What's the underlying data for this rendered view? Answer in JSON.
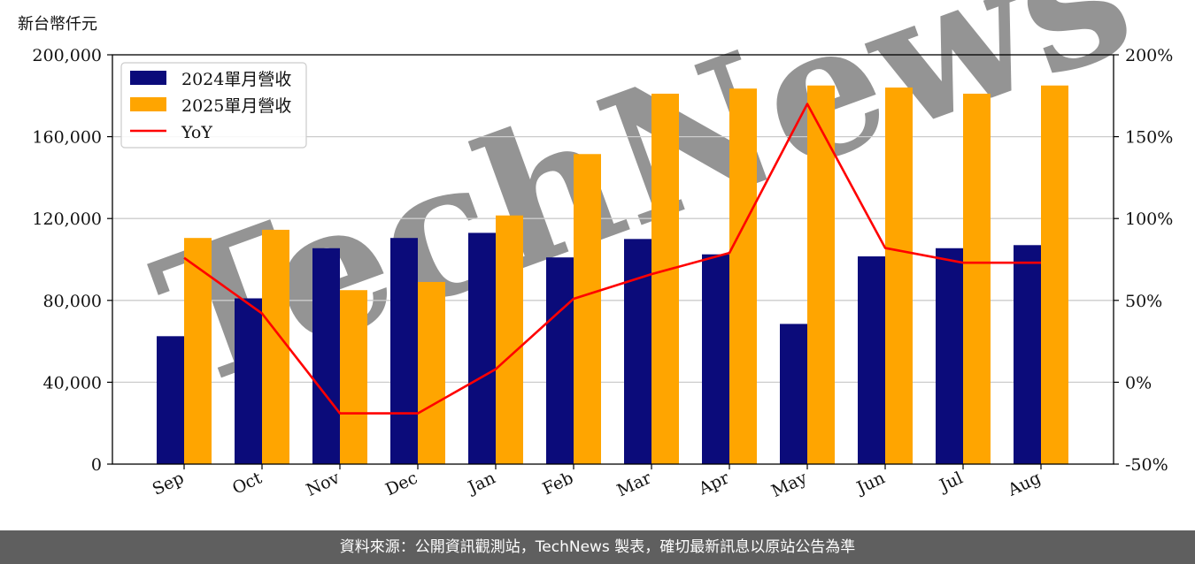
{
  "unit_label": "新台幣仟元",
  "watermark": "TechNews",
  "footer": "資料來源：公開資訊觀測站，TechNews 製表，確切最新訊息以原站公告為準",
  "colors": {
    "series_2024": "#0b0b7a",
    "series_2025": "#ffa500",
    "yoy": "#ff0000",
    "grid": "#cccccc",
    "footer_bg": "#5f5f5f"
  },
  "chart_data": {
    "type": "bar",
    "categories": [
      "Sep",
      "Oct",
      "Nov",
      "Dec",
      "Jan",
      "Feb",
      "Mar",
      "Apr",
      "May",
      "Jun",
      "Jul",
      "Aug"
    ],
    "series": [
      {
        "name": "2024單月營收",
        "type": "bar",
        "axis": "left",
        "values": [
          62500,
          81000,
          105500,
          110500,
          113000,
          101000,
          110000,
          102500,
          68500,
          101500,
          105500,
          107000
        ]
      },
      {
        "name": "2025單月營收",
        "type": "bar",
        "axis": "left",
        "values": [
          110500,
          114500,
          85000,
          89000,
          121500,
          151500,
          181000,
          183500,
          185000,
          184000,
          181000,
          185000
        ]
      }
    ],
    "line_series": {
      "name": "YoY",
      "type": "line",
      "axis": "right",
      "values": [
        76,
        42,
        -19,
        -19,
        8,
        51,
        66,
        79,
        170,
        82,
        73,
        73
      ]
    },
    "left_axis": {
      "ylim": [
        0,
        200000
      ],
      "ticks": [
        0,
        40000,
        80000,
        120000,
        160000,
        200000
      ],
      "tick_labels": [
        "0",
        "40,000",
        "80,000",
        "120,000",
        "160,000",
        "200,000"
      ]
    },
    "right_axis": {
      "ylim": [
        -50,
        200
      ],
      "ticks": [
        -50,
        0,
        50,
        100,
        150,
        200
      ],
      "tick_labels": [
        "-50%",
        "0%",
        "50%",
        "100%",
        "150%",
        "200%"
      ]
    },
    "grid": true,
    "legend_position": "top-left"
  }
}
